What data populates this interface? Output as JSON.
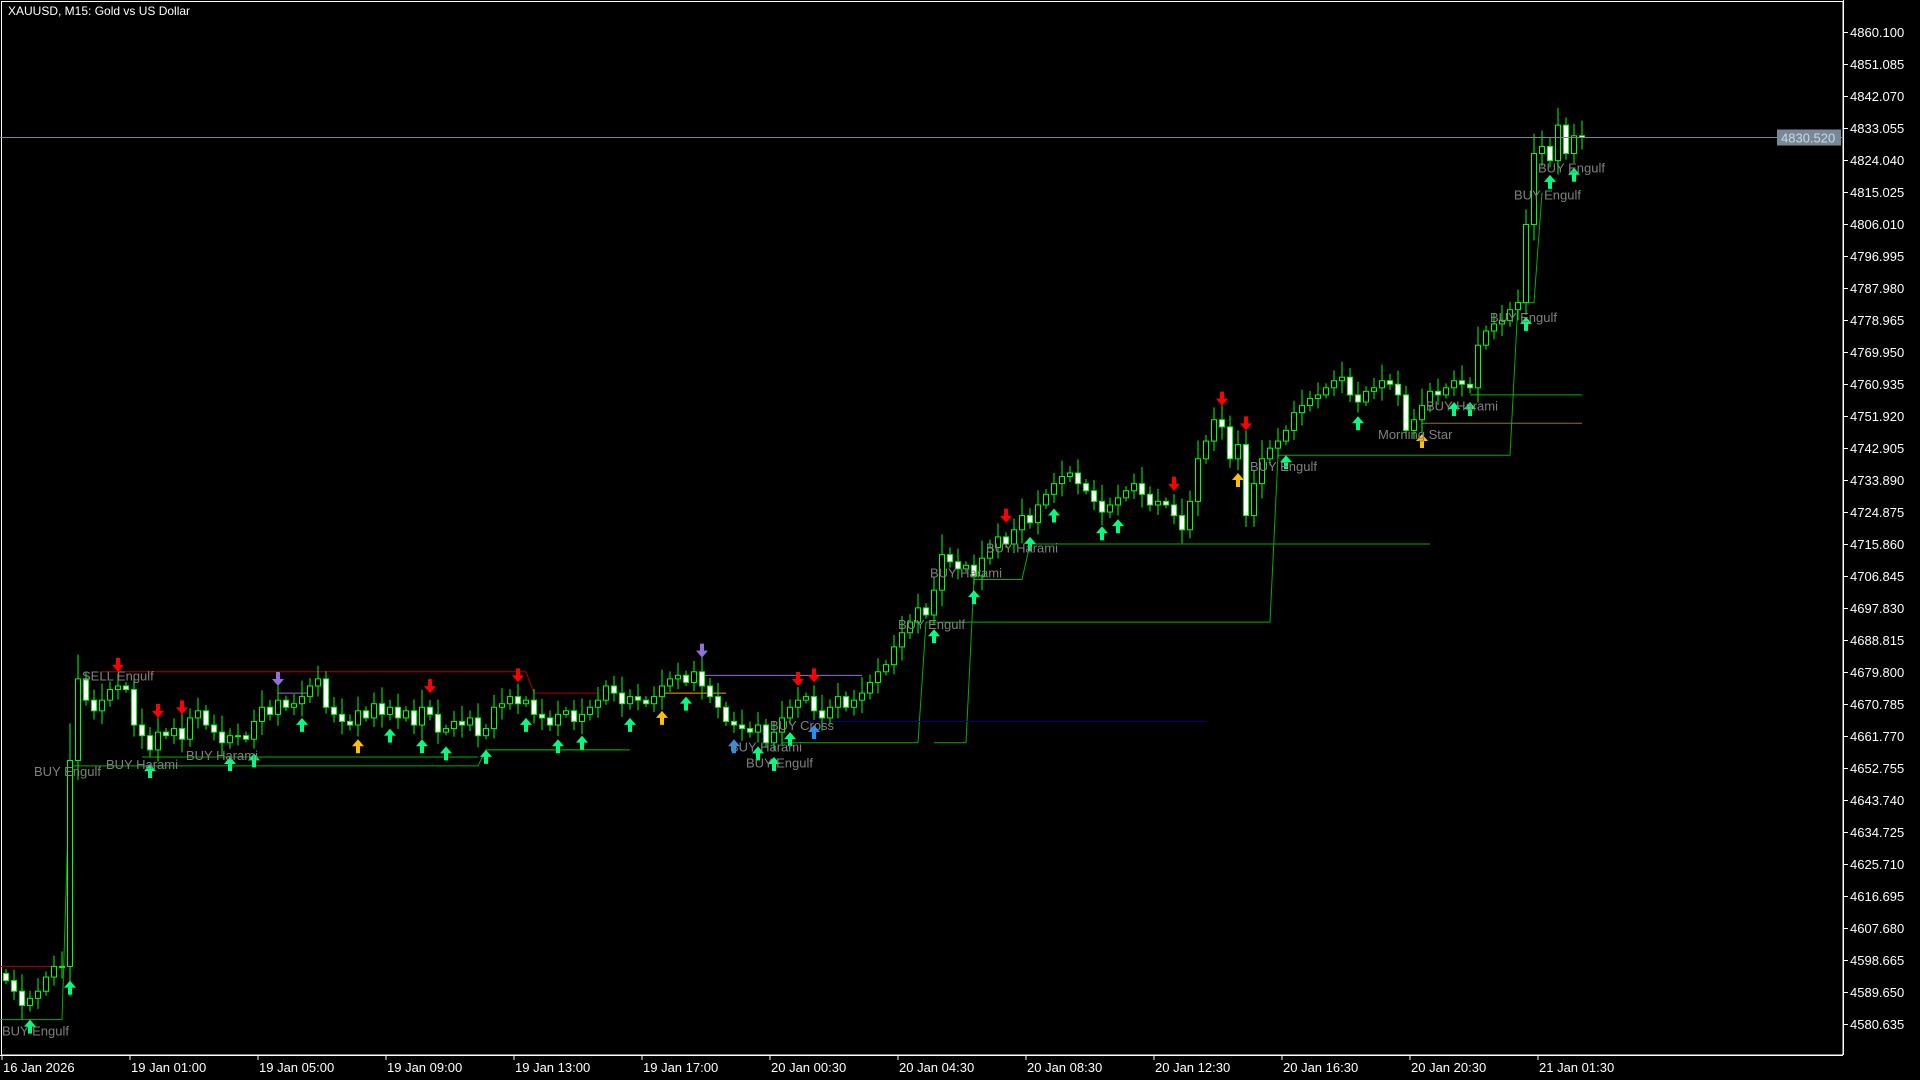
{
  "header": {
    "title": "XAUUSD, M15:  Gold vs US Dollar"
  },
  "chart_data": {
    "type": "candlestick",
    "symbol": "XAUUSD",
    "timeframe": "M15",
    "colors": {
      "background": "#000000",
      "candle_outline": "#00ff00",
      "bear_fill": "#ffffff",
      "bull_fill": "#000000",
      "axis": "#ffffff",
      "bid_line": "#778899",
      "label": "#808080"
    },
    "ylim": [
      4576.1,
      4867
    ],
    "y_ticks": [
      "4860.100",
      "4851.085",
      "4842.070",
      "4833.055",
      "4824.040",
      "4815.025",
      "4806.010",
      "4796.995",
      "4787.980",
      "4778.965",
      "4769.950",
      "4760.935",
      "4751.920",
      "4742.905",
      "4733.890",
      "4724.875",
      "4715.860",
      "4706.845",
      "4697.830",
      "4688.815",
      "4679.800",
      "4670.785",
      "4661.770",
      "4652.755",
      "4643.740",
      "4634.725",
      "4625.710",
      "4616.695",
      "4607.680",
      "4598.665",
      "4589.650",
      "4580.635"
    ],
    "x_ticks": [
      {
        "i": 0,
        "label": "16 Jan 2026"
      },
      {
        "i": 16,
        "label": "19 Jan 01:00"
      },
      {
        "i": 32,
        "label": "19 Jan 05:00"
      },
      {
        "i": 48,
        "label": "19 Jan 09:00"
      },
      {
        "i": 64,
        "label": "19 Jan 13:00"
      },
      {
        "i": 80,
        "label": "19 Jan 17:00"
      },
      {
        "i": 96,
        "label": "20 Jan 00:30"
      },
      {
        "i": 112,
        "label": "20 Jan 04:30"
      },
      {
        "i": 128,
        "label": "20 Jan 08:30"
      },
      {
        "i": 144,
        "label": "20 Jan 12:30"
      },
      {
        "i": 160,
        "label": "20 Jan 16:30"
      },
      {
        "i": 176,
        "label": "20 Jan 20:30"
      },
      {
        "i": 192,
        "label": "21 Jan 01:30"
      }
    ],
    "current_price": "4830.520",
    "closes": [
      4593,
      4590,
      4586,
      4588,
      4590,
      4594,
      4597,
      4597,
      4655,
      4678,
      4672,
      4669,
      4672,
      4675,
      4676,
      4675,
      4665,
      4662,
      4658,
      4663,
      4662,
      4664,
      4661,
      4667,
      4669,
      4665,
      4663,
      4660,
      4662,
      4662,
      4661,
      4666,
      4670,
      4668,
      4672,
      4670,
      4671,
      4673,
      4676,
      4678,
      4670,
      4668,
      4666,
      4665,
      4669,
      4667,
      4671,
      4668,
      4670,
      4667,
      4669,
      4665,
      4670,
      4668,
      4663,
      4664,
      4666,
      4665,
      4667,
      4662,
      4664,
      4670,
      4671,
      4673,
      4671,
      4672,
      4668,
      4667,
      4665,
      4668,
      4669,
      4666,
      4668,
      4670,
      4672,
      4676,
      4674,
      4671,
      4673,
      4672,
      4671,
      4673,
      4676,
      4678,
      4679,
      4677,
      4680,
      4676,
      4673,
      4670,
      4666,
      4665,
      4664,
      4663,
      4665,
      4660,
      4663,
      4667,
      4670,
      4672,
      4673,
      4669,
      4667,
      4670,
      4673,
      4670,
      4672,
      4674,
      4677,
      4680,
      4682,
      4687,
      4691,
      4694,
      4698,
      4696,
      4703,
      4713,
      4711,
      4709,
      4710,
      4707,
      4712,
      4715,
      4718,
      4716,
      4720,
      4724,
      4722,
      4727,
      4730,
      4733,
      4735,
      4736,
      4733,
      4731,
      4728,
      4725,
      4727,
      4729,
      4731,
      4733,
      4730,
      4727,
      4728,
      4727,
      4724,
      4720,
      4728,
      4740,
      4745,
      4751,
      4749,
      4740,
      4744,
      4724,
      4733,
      4740,
      4743,
      4745,
      4748,
      4753,
      4755,
      4757,
      4758,
      4760,
      4762,
      4763,
      4758,
      4756,
      4759,
      4760,
      4762,
      4761,
      4758,
      4748,
      4751,
      4755,
      4759,
      4758,
      4760,
      4762,
      4761,
      4760,
      4772,
      4776,
      4778,
      4779,
      4782,
      4784,
      4806,
      4826,
      4828,
      4824,
      4834,
      4826,
      4831,
      4830.52
    ],
    "signals": [
      {
        "i": 8,
        "dir": "up",
        "color": "#00ff7f"
      },
      {
        "i": 3,
        "dir": "up",
        "color": "#00ff7f"
      },
      {
        "i": 14,
        "dir": "down",
        "color": "#ff0000"
      },
      {
        "i": 18,
        "dir": "up",
        "color": "#00ff7f"
      },
      {
        "i": 19,
        "dir": "down",
        "color": "#ff0000"
      },
      {
        "i": 22,
        "dir": "down",
        "color": "#ff0000"
      },
      {
        "i": 28,
        "dir": "up",
        "color": "#00ff7f"
      },
      {
        "i": 31,
        "dir": "up",
        "color": "#00ff7f"
      },
      {
        "i": 34,
        "dir": "down",
        "color": "#9370db"
      },
      {
        "i": 37,
        "dir": "up",
        "color": "#00ff7f"
      },
      {
        "i": 44,
        "dir": "up",
        "color": "#ffc000"
      },
      {
        "i": 48,
        "dir": "up",
        "color": "#00ff7f"
      },
      {
        "i": 53,
        "dir": "down",
        "color": "#ff0000"
      },
      {
        "i": 52,
        "dir": "up",
        "color": "#00ff7f"
      },
      {
        "i": 55,
        "dir": "up",
        "color": "#00ff7f"
      },
      {
        "i": 60,
        "dir": "up",
        "color": "#00ff7f"
      },
      {
        "i": 64,
        "dir": "down",
        "color": "#ff0000"
      },
      {
        "i": 65,
        "dir": "up",
        "color": "#00ff7f"
      },
      {
        "i": 69,
        "dir": "up",
        "color": "#00ff7f"
      },
      {
        "i": 72,
        "dir": "up",
        "color": "#00ff7f"
      },
      {
        "i": 78,
        "dir": "up",
        "color": "#00ff7f"
      },
      {
        "i": 82,
        "dir": "up",
        "color": "#ffc000"
      },
      {
        "i": 85,
        "dir": "up",
        "color": "#00ff7f"
      },
      {
        "i": 87,
        "dir": "down",
        "color": "#9370db"
      },
      {
        "i": 91,
        "dir": "up",
        "color": "#1e90ff"
      },
      {
        "i": 94,
        "dir": "up",
        "color": "#00ff7f"
      },
      {
        "i": 96,
        "dir": "up",
        "color": "#00ff7f"
      },
      {
        "i": 98,
        "dir": "up",
        "color": "#00ff7f"
      },
      {
        "i": 99,
        "dir": "down",
        "color": "#ff0000"
      },
      {
        "i": 101,
        "dir": "up",
        "color": "#1e90ff"
      },
      {
        "i": 101,
        "dir": "down",
        "color": "#ff0000"
      },
      {
        "i": 116,
        "dir": "up",
        "color": "#00ff7f"
      },
      {
        "i": 121,
        "dir": "up",
        "color": "#00ff7f"
      },
      {
        "i": 125,
        "dir": "down",
        "color": "#ff0000"
      },
      {
        "i": 128,
        "dir": "up",
        "color": "#00ff7f"
      },
      {
        "i": 131,
        "dir": "up",
        "color": "#00ff7f"
      },
      {
        "i": 137,
        "dir": "up",
        "color": "#00ff7f"
      },
      {
        "i": 139,
        "dir": "up",
        "color": "#00ff7f"
      },
      {
        "i": 146,
        "dir": "down",
        "color": "#ff0000"
      },
      {
        "i": 152,
        "dir": "down",
        "color": "#ff0000"
      },
      {
        "i": 154,
        "dir": "up",
        "color": "#ffc000"
      },
      {
        "i": 155,
        "dir": "down",
        "color": "#ff0000"
      },
      {
        "i": 160,
        "dir": "up",
        "color": "#00ff7f"
      },
      {
        "i": 169,
        "dir": "up",
        "color": "#00ff7f"
      },
      {
        "i": 177,
        "dir": "up",
        "color": "#ffc000"
      },
      {
        "i": 181,
        "dir": "up",
        "color": "#00ff7f"
      },
      {
        "i": 183,
        "dir": "up",
        "color": "#00ff7f"
      },
      {
        "i": 190,
        "dir": "up",
        "color": "#00ff7f"
      },
      {
        "i": 193,
        "dir": "up",
        "color": "#00ff7f"
      },
      {
        "i": 196,
        "dir": "up",
        "color": "#00ff7f"
      }
    ],
    "annotations": [
      {
        "i": 0,
        "price": 4579,
        "text": "BUY Engulf"
      },
      {
        "i": 10,
        "price": 4679,
        "text": "SELL Engulf"
      },
      {
        "i": 4,
        "price": 4652,
        "text": "BUY Engulf"
      },
      {
        "i": 13,
        "price": 4654,
        "text": "BUY Harami"
      },
      {
        "i": 23,
        "price": 4656.5,
        "text": "BUY Harami"
      },
      {
        "i": 91,
        "price": 4659,
        "text": "BUY Harami"
      },
      {
        "i": 93,
        "price": 4659,
        "text": "BUY Engulf"
      },
      {
        "i": 96,
        "price": 4665,
        "text": "BUY Cross"
      },
      {
        "i": 112,
        "price": 4693.5,
        "text": "BUY Engulf"
      },
      {
        "i": 116,
        "price": 4708,
        "text": "BUY Harami"
      },
      {
        "i": 123,
        "price": 4715,
        "text": "BUY Harami"
      },
      {
        "i": 156,
        "price": 4738,
        "text": "BUY Engulf"
      },
      {
        "i": 172,
        "price": 4747,
        "text": "Morning Star"
      },
      {
        "i": 178,
        "price": 4755,
        "text": "BUY Harami"
      },
      {
        "i": 186,
        "price": 4780,
        "text": "BUY Engulf"
      },
      {
        "i": 189,
        "price": 4814.5,
        "text": "BUY Engulf"
      },
      {
        "i": 192,
        "price": 4817.5,
        "text": "BUY Engulf"
      }
    ],
    "levels": [
      {
        "color": "#00b000",
        "points": [
          [
            -1,
            4582
          ],
          [
            7,
            4582
          ],
          [
            8,
            4653.5
          ],
          [
            59,
            4653.5
          ],
          [
            60,
            4658
          ],
          [
            78,
            4658
          ]
        ]
      },
      {
        "color": "#00b000",
        "points": [
          [
            17,
            4656
          ],
          [
            59,
            4656
          ]
        ]
      },
      {
        "color": "#00b000",
        "points": [
          [
            97,
            4660
          ],
          [
            114,
            4660
          ],
          [
            115,
            4694
          ],
          [
            158,
            4694
          ],
          [
            159,
            4741
          ],
          [
            188,
            4741
          ],
          [
            189,
            4784
          ],
          [
            191,
            4784
          ],
          [
            192,
            4815
          ]
        ]
      },
      {
        "color": "#00b000",
        "points": [
          [
            116,
            4660
          ],
          [
            120,
            4660
          ],
          [
            121,
            4706
          ],
          [
            127,
            4706
          ],
          [
            128,
            4716
          ],
          [
            178,
            4716
          ]
        ]
      },
      {
        "color": "#00b000",
        "points": [
          [
            183,
            4758
          ],
          [
            197,
            4758
          ]
        ]
      },
      {
        "color": "#808000",
        "points": [
          [
            177,
            4750
          ],
          [
            197,
            4750
          ]
        ]
      },
      {
        "color": "#b00000",
        "points": [
          [
            -1,
            4597
          ],
          [
            6,
            4597
          ]
        ]
      },
      {
        "color": "#b00000",
        "points": [
          [
            12,
            4680
          ],
          [
            65,
            4680
          ],
          [
            66,
            4674
          ],
          [
            74,
            4674
          ]
        ]
      },
      {
        "color": "#9370db",
        "points": [
          [
            34,
            4674
          ],
          [
            38,
            4674
          ]
        ]
      },
      {
        "color": "#9370db",
        "points": [
          [
            87,
            4679
          ],
          [
            107,
            4679
          ]
        ]
      },
      {
        "color": "#ffa500",
        "points": [
          [
            82,
            4674
          ],
          [
            90,
            4674
          ]
        ]
      },
      {
        "color": "#00008b",
        "points": [
          [
            100,
            4666
          ],
          [
            150,
            4666
          ]
        ]
      },
      {
        "color": "#00b000",
        "points": [
          [
            60,
            4658
          ],
          [
            77,
            4658
          ]
        ]
      }
    ]
  }
}
